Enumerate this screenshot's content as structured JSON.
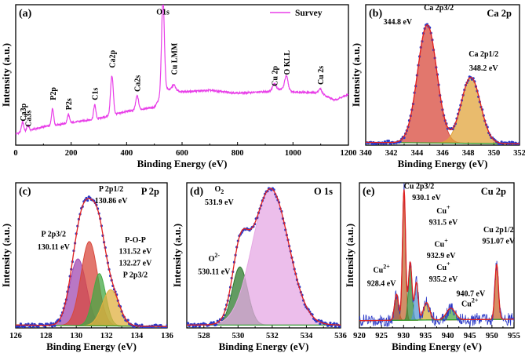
{
  "chart_data": [
    {
      "panel": "(a)",
      "type": "line",
      "xlabel": "Binding Energy (eV)",
      "ylabel": "Intensity (a.u.)",
      "xlim": [
        0,
        1200
      ],
      "xticks": [
        0,
        200,
        400,
        600,
        800,
        1000,
        1200
      ],
      "legend": "Survey",
      "legend_position": "top-right",
      "legend_color": "#e83ee8",
      "line_color": "#e83ee8",
      "baseline_points": [
        [
          0,
          0.08
        ],
        [
          15,
          0.09
        ],
        [
          40,
          0.1
        ],
        [
          100,
          0.13
        ],
        [
          200,
          0.16
        ],
        [
          300,
          0.19
        ],
        [
          400,
          0.24
        ],
        [
          500,
          0.27
        ],
        [
          540,
          0.4
        ],
        [
          600,
          0.38
        ],
        [
          700,
          0.39
        ],
        [
          800,
          0.37
        ],
        [
          900,
          0.38
        ],
        [
          960,
          0.4
        ],
        [
          1000,
          0.38
        ],
        [
          1100,
          0.37
        ],
        [
          1150,
          0.32
        ],
        [
          1200,
          0.36
        ]
      ],
      "peaks": [
        {
          "label": "Ca3p",
          "x": 25,
          "height": 0.07,
          "width": 4,
          "label_y": 0.17
        },
        {
          "label": "Ca3s",
          "x": 44,
          "height": 0.04,
          "width": 4,
          "label_y": 0.13
        },
        {
          "label": "P2p",
          "x": 133,
          "height": 0.12,
          "width": 4,
          "label_y": 0.32
        },
        {
          "label": "P2s",
          "x": 190,
          "height": 0.06,
          "width": 4,
          "label_y": 0.25
        },
        {
          "label": "C1s",
          "x": 285,
          "height": 0.1,
          "width": 4,
          "label_y": 0.32
        },
        {
          "label": "Ca2p",
          "x": 347,
          "height": 0.28,
          "width": 5,
          "label_y": 0.55
        },
        {
          "label": "Ca2s",
          "x": 438,
          "height": 0.1,
          "width": 5,
          "label_y": 0.38
        },
        {
          "label": "O1s",
          "x": 531,
          "height": 0.68,
          "width": 5,
          "label_y": 0.93
        },
        {
          "label": "Cu LMM",
          "x": 570,
          "height": 0.04,
          "width": 6,
          "label_y": 0.5
        },
        {
          "label": "Cu 2p",
          "x": 933,
          "height": 0.05,
          "width": 6,
          "label_y": 0.42
        },
        {
          "label": "O KLL",
          "x": 976,
          "height": 0.1,
          "width": 6,
          "label_y": 0.5
        },
        {
          "label": "Cu 2s",
          "x": 1098,
          "height": 0.03,
          "width": 6,
          "label_y": 0.43
        }
      ]
    },
    {
      "panel": "(b)",
      "title": "Ca 2p",
      "type": "xps-fit",
      "xlabel": "Binding Energy (eV)",
      "ylabel": "Intensity (a.u.)",
      "xlim": [
        340,
        352
      ],
      "xticks": [
        340,
        342,
        344,
        346,
        348,
        350,
        352
      ],
      "components": [
        {
          "name": "Ca 2p3/2",
          "center": 344.8,
          "height": 0.84,
          "sigma": 0.75,
          "color": "#d84a3c"
        },
        {
          "name": "Ca 2p1/2",
          "center": 348.2,
          "height": 0.47,
          "sigma": 0.75,
          "color": "#e1a43c"
        }
      ],
      "baseline": [
        0.02,
        0.01
      ],
      "annotations": [
        {
          "text": "Ca 2p3/2",
          "x": 345.7,
          "y": 0.96
        },
        {
          "text": "344.8 eV",
          "x": 342.5,
          "y": 0.86
        },
        {
          "text": "Ca 2p1/2",
          "x": 349.2,
          "y": 0.63
        },
        {
          "text": "348.2 eV",
          "x": 349.2,
          "y": 0.53
        }
      ]
    },
    {
      "panel": "(c)",
      "title": "P 2p",
      "type": "xps-fit",
      "xlabel": "Binding Energy (eV)",
      "ylabel": "Intensity (a.u.)",
      "xlim": [
        126,
        136
      ],
      "xticks": [
        126,
        128,
        130,
        132,
        134,
        136
      ],
      "components": [
        {
          "name": "P 2p3/2",
          "center": 130.11,
          "height": 0.46,
          "sigma": 0.55,
          "color": "#a24ab2"
        },
        {
          "name": "P 2p1/2",
          "center": 130.86,
          "height": 0.58,
          "sigma": 0.55,
          "color": "#d8483c"
        },
        {
          "name": "P-O-P",
          "center": 131.52,
          "height": 0.36,
          "sigma": 0.42,
          "color": "#44a844"
        },
        {
          "name": "P 2p3/2",
          "center": 132.27,
          "height": 0.25,
          "sigma": 0.55,
          "color": "#e0b040"
        }
      ],
      "baseline": [
        0.02,
        0.01
      ],
      "annotations": [
        {
          "text": "P 2p1/2",
          "x": 132.3,
          "y": 0.94
        },
        {
          "text": "130.86 eV",
          "x": 132.3,
          "y": 0.86
        },
        {
          "text": "P 2p3/2",
          "x": 128.5,
          "y": 0.63
        },
        {
          "text": "130.11 eV",
          "x": 128.5,
          "y": 0.54
        },
        {
          "text": "P-O-P",
          "x": 133.9,
          "y": 0.59
        },
        {
          "text": "131.52 eV",
          "x": 133.9,
          "y": 0.51
        },
        {
          "text": "132.27 eV",
          "x": 133.9,
          "y": 0.43
        },
        {
          "text": "P 2p3/2",
          "x": 133.9,
          "y": 0.35
        }
      ]
    },
    {
      "panel": "(d)",
      "title": "O 1s",
      "type": "xps-fit",
      "xlabel": "Binding Energy (eV)",
      "ylabel": "Intensity (a.u.)",
      "xlim": [
        527,
        536
      ],
      "xticks": [
        528,
        530,
        532,
        534,
        536
      ],
      "components": [
        {
          "name": "O2-",
          "center": 530.11,
          "height": 0.4,
          "sigma": 0.45,
          "color": "#2e7a2e"
        },
        {
          "name": "O2",
          "center": 531.9,
          "height": 0.94,
          "sigma": 1.05,
          "color": "#e6a8e4"
        }
      ],
      "baseline": [
        0.02,
        0.02
      ],
      "annotations": [
        {
          "text": "O",
          "sub": "2",
          "x": 528.9,
          "y": 0.94
        },
        {
          "text": "531.9 eV",
          "x": 528.9,
          "y": 0.85
        },
        {
          "text": "O",
          "sup": "2-",
          "x": 528.6,
          "y": 0.46
        },
        {
          "text": "530.11 eV",
          "x": 528.6,
          "y": 0.37
        }
      ]
    },
    {
      "panel": "(e)",
      "title": "Cu 2p",
      "type": "xps-fit",
      "xlabel": "Binding Energy (eV)",
      "ylabel": "Intensity (a.u.)",
      "xlim": [
        920,
        955
      ],
      "xticks": [
        920,
        925,
        930,
        935,
        940,
        945,
        950,
        955
      ],
      "components": [
        {
          "name": "Cu2+",
          "center": 928.4,
          "height": 0.18,
          "sigma": 0.45,
          "color": "#8a3c28"
        },
        {
          "name": "Cu 2p3/2",
          "center": 930.1,
          "height": 0.9,
          "sigma": 0.35,
          "color": "#c26a36"
        },
        {
          "name": "Cu+",
          "center": 931.5,
          "height": 0.4,
          "sigma": 0.4,
          "color": "#3a8a3a"
        },
        {
          "name": "Cu+",
          "center": 932.9,
          "height": 0.26,
          "sigma": 0.4,
          "color": "#5a9ad4"
        },
        {
          "name": "Cu+",
          "center": 935.2,
          "height": 0.12,
          "sigma": 0.7,
          "color": "#d4b23a"
        },
        {
          "name": "Cu2+",
          "center": 940.7,
          "height": 0.08,
          "sigma": 1.0,
          "color": "#4aa84a"
        },
        {
          "name": "Cu 2p1/2",
          "center": 951.07,
          "height": 0.38,
          "sigma": 0.4,
          "color": "#c86a30"
        }
      ],
      "baseline": [
        0.05,
        0.06
      ],
      "annotations": [
        {
          "text": "Cu 2p3/2",
          "x": 933.5,
          "y": 0.96
        },
        {
          "text": "930.1 eV",
          "x": 935.2,
          "y": 0.88
        },
        {
          "text": "Cu",
          "sup": "+",
          "x": 939.0,
          "y": 0.79
        },
        {
          "text": "931.5 eV",
          "x": 939.0,
          "y": 0.71
        },
        {
          "text": "Cu",
          "sup": "+",
          "x": 938.5,
          "y": 0.56
        },
        {
          "text": "932.9 eV",
          "x": 938.5,
          "y": 0.48
        },
        {
          "text": "Cu",
          "sup": "+",
          "x": 939.0,
          "y": 0.4
        },
        {
          "text": "935.2 eV",
          "x": 939.0,
          "y": 0.32
        },
        {
          "text": "940.7 eV",
          "x": 945.2,
          "y": 0.22
        },
        {
          "text": "Cu",
          "sup": "2+",
          "x": 945.0,
          "y": 0.15
        },
        {
          "text": "Cu",
          "sup": "2+",
          "x": 925.0,
          "y": 0.38
        },
        {
          "text": "928.4 eV",
          "x": 925.0,
          "y": 0.29
        },
        {
          "text": "Cu 2p1/2",
          "x": 951.5,
          "y": 0.66
        },
        {
          "text": "951.07 eV",
          "x": 951.5,
          "y": 0.58
        }
      ]
    }
  ]
}
